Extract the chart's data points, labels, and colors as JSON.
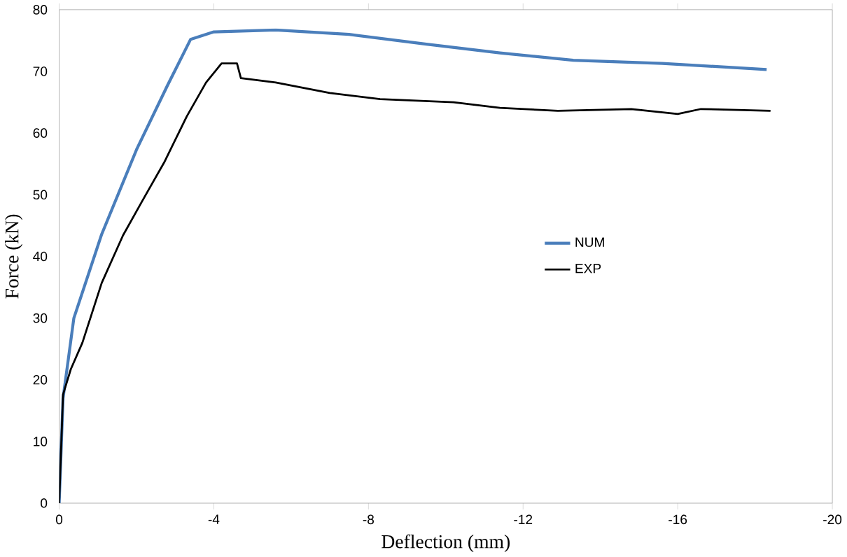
{
  "chart_data": {
    "type": "line",
    "xlabel": "Deflection (mm)",
    "ylabel": "Force (kN)",
    "xlim": [
      0,
      -20
    ],
    "xticks": [
      0,
      -4,
      -8,
      -12,
      -16,
      -20
    ],
    "ylim": [
      0,
      80
    ],
    "yticks": [
      0,
      10,
      20,
      30,
      40,
      50,
      60,
      70,
      80
    ],
    "legend": "right",
    "grid": false,
    "marker": "none",
    "line_style": "solid",
    "series": [
      {
        "name": "NUM",
        "color": "#4a7ebb",
        "x": [
          0,
          -0.1,
          -0.38,
          -1.1,
          -2.0,
          -2.8,
          -3.4,
          -4.0,
          -5.6,
          -7.5,
          -9.5,
          -11.4,
          -13.3,
          -15.6,
          -18.3
        ],
        "values": [
          0,
          17,
          30,
          43.6,
          57.3,
          67.7,
          75.2,
          76.4,
          76.7,
          76,
          74.4,
          73,
          71.8,
          71.3,
          70.3
        ]
      },
      {
        "name": "EXP",
        "color": "#000000",
        "x": [
          0,
          -0.1,
          -0.3,
          -0.6,
          -1.1,
          -1.65,
          -2.15,
          -2.73,
          -3.3,
          -3.8,
          -4.2,
          -4.6,
          -4.7,
          -5.6,
          -7.0,
          -8.3,
          -10.2,
          -11.4,
          -12.9,
          -14.8,
          -16.0,
          -16.6,
          -18.4
        ],
        "values": [
          0,
          17.6,
          21.7,
          26,
          35.7,
          43.4,
          49,
          55.4,
          62.7,
          68.2,
          71.3,
          71.3,
          68.9,
          68.2,
          66.5,
          65.5,
          65,
          64.1,
          63.6,
          63.9,
          63.1,
          63.9,
          63.6
        ]
      }
    ]
  }
}
